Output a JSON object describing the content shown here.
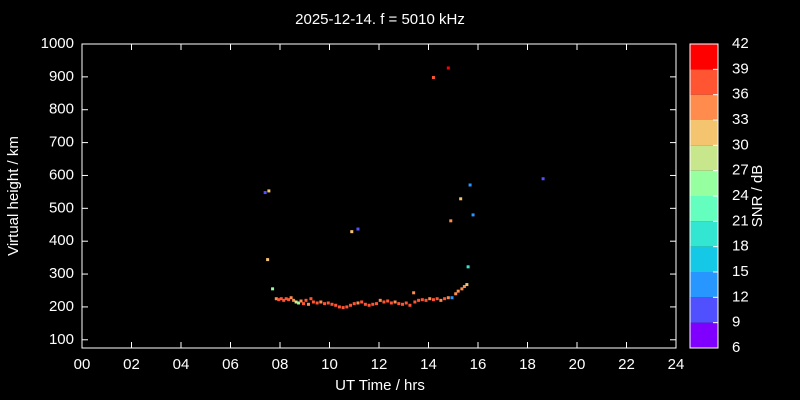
{
  "chart_data": {
    "type": "scatter",
    "title": "2025-12-14. f = 5010 kHz",
    "xlabel": "UT Time / hrs",
    "ylabel": "Virtual height / km",
    "colorbar_label": "SNR / dB",
    "xlim": [
      0,
      24
    ],
    "ylim": [
      75,
      1000
    ],
    "xticks": [
      {
        "value": 0,
        "label": "00"
      },
      {
        "value": 2,
        "label": "02"
      },
      {
        "value": 4,
        "label": "04"
      },
      {
        "value": 6,
        "label": "06"
      },
      {
        "value": 8,
        "label": "08"
      },
      10,
      12,
      14,
      16,
      18,
      20,
      22,
      24
    ],
    "yticks": [
      100,
      200,
      300,
      400,
      500,
      600,
      700,
      800,
      900,
      1000
    ],
    "clim": [
      6,
      42
    ],
    "cticks": [
      6,
      9,
      12,
      15,
      18,
      21,
      24,
      27,
      30,
      33,
      36,
      39,
      42
    ],
    "colors": [
      "#8000ff",
      "#5050ff",
      "#2896ff",
      "#14c8e6",
      "#32e6d2",
      "#64ffbe",
      "#96ffa0",
      "#c8e68c",
      "#f5c46e",
      "#ff8c4c",
      "#ff5533",
      "#ff0000"
    ],
    "x": [
      7.4,
      7.55,
      7.5,
      7.7,
      10.9,
      11.15,
      14.2,
      14.8,
      14.9,
      15.3,
      15.68,
      15.8,
      15.6,
      18.63,
      7.85,
      7.95,
      8.05,
      8.15,
      8.25,
      8.35,
      8.45,
      8.55,
      8.65,
      8.75,
      8.85,
      8.95,
      9.05,
      9.15,
      9.25,
      9.35,
      9.5,
      9.65,
      9.8,
      9.95,
      10.1,
      10.25,
      10.4,
      10.55,
      10.7,
      10.85,
      11.0,
      11.15,
      11.3,
      11.45,
      11.6,
      11.75,
      11.9,
      12.05,
      12.2,
      12.35,
      12.5,
      12.65,
      12.8,
      12.95,
      13.1,
      13.25,
      13.4,
      13.45,
      13.6,
      13.75,
      13.9,
      14.05,
      14.2,
      14.35,
      14.5,
      14.65,
      14.8,
      14.95,
      15.1,
      15.2,
      15.35,
      15.45,
      15.55
    ],
    "y": [
      548,
      553,
      344,
      255,
      429,
      437,
      898,
      927,
      462,
      529,
      571,
      480,
      322,
      590,
      225,
      222,
      225,
      220,
      225,
      222,
      228,
      220,
      215,
      212,
      218,
      210,
      220,
      208,
      225,
      215,
      212,
      215,
      210,
      212,
      208,
      205,
      200,
      198,
      200,
      205,
      210,
      212,
      215,
      208,
      205,
      208,
      210,
      220,
      215,
      218,
      212,
      215,
      210,
      208,
      212,
      205,
      243,
      215,
      220,
      222,
      220,
      225,
      222,
      225,
      220,
      225,
      228,
      228,
      240,
      248,
      255,
      262,
      268
    ],
    "snr": [
      10,
      32,
      32,
      25,
      31,
      11,
      38,
      40,
      35,
      32,
      12,
      12,
      18,
      11,
      35,
      36,
      36,
      37,
      36,
      38,
      35,
      33,
      28,
      25,
      34,
      36,
      37,
      35,
      36,
      37,
      36,
      34,
      36,
      37,
      38,
      36,
      37,
      38,
      36,
      37,
      36,
      33,
      36,
      37,
      38,
      36,
      37,
      35,
      36,
      37,
      36,
      35,
      37,
      36,
      37,
      36,
      34,
      37,
      36,
      37,
      36,
      35,
      37,
      36,
      34,
      36,
      35,
      12,
      34,
      33,
      34,
      33,
      32
    ]
  }
}
